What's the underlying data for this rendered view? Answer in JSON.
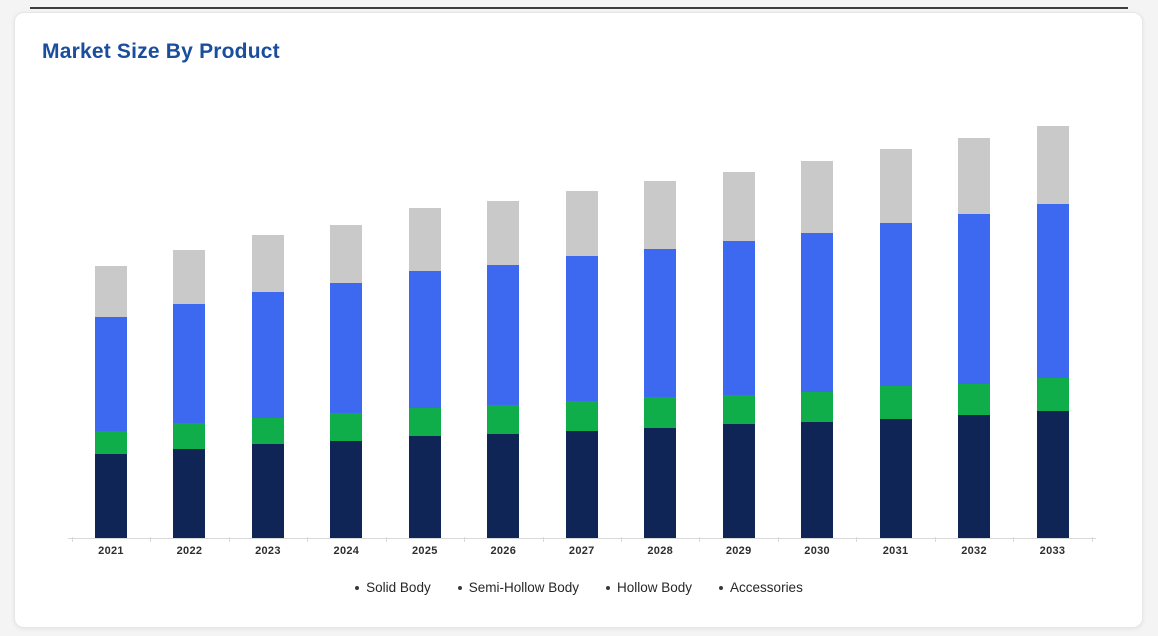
{
  "page": {
    "title": "Market Size By Product"
  },
  "colors": {
    "page_background": "#f4f4f4",
    "card_background": "#ffffff",
    "card_border": "#e7e7e7",
    "top_line": "#3d3d3d",
    "title_text": "#1a4d9e",
    "axis_line": "#d9d9d9",
    "x_label_text": "#2e2e2e",
    "legend_text": "#272727",
    "legend_dot": "#3a3a3a"
  },
  "chart_data": {
    "type": "bar",
    "stacked": true,
    "title": "Market Size By Product",
    "xlabel": "",
    "ylabel": "",
    "units": "relative units (no y-axis scale shown in chart)",
    "y_axis_shown": false,
    "grid": false,
    "legend_position": "bottom",
    "legend_marker": "dot",
    "ylim": [
      0,
      420
    ],
    "categories": [
      "2021",
      "2022",
      "2023",
      "2024",
      "2025",
      "2026",
      "2027",
      "2028",
      "2029",
      "2030",
      "2031",
      "2032",
      "2033"
    ],
    "series": [
      {
        "name": "Solid Body",
        "color": "#0e2556",
        "values": [
          84,
          89,
          94,
          97,
          102,
          104,
          107,
          110,
          114,
          116,
          119,
          123,
          127
        ]
      },
      {
        "name": "Semi-Hollow Body",
        "color": "#0fae4b",
        "values": [
          23,
          26,
          26,
          28,
          28,
          29,
          30,
          31,
          29,
          30,
          33,
          31,
          33
        ]
      },
      {
        "name": "Hollow Body",
        "color": "#3d69f0",
        "values": [
          114,
          119,
          126,
          130,
          137,
          140,
          145,
          148,
          154,
          159,
          163,
          170,
          174
        ]
      },
      {
        "name": "Accessories",
        "color": "#c9c9c9",
        "values": [
          51,
          54,
          57,
          58,
          63,
          64,
          65,
          68,
          69,
          72,
          74,
          76,
          78
        ]
      }
    ],
    "totals": [
      272,
      288,
      303,
      313,
      330,
      337,
      347,
      357,
      366,
      377,
      389,
      400,
      412
    ]
  }
}
